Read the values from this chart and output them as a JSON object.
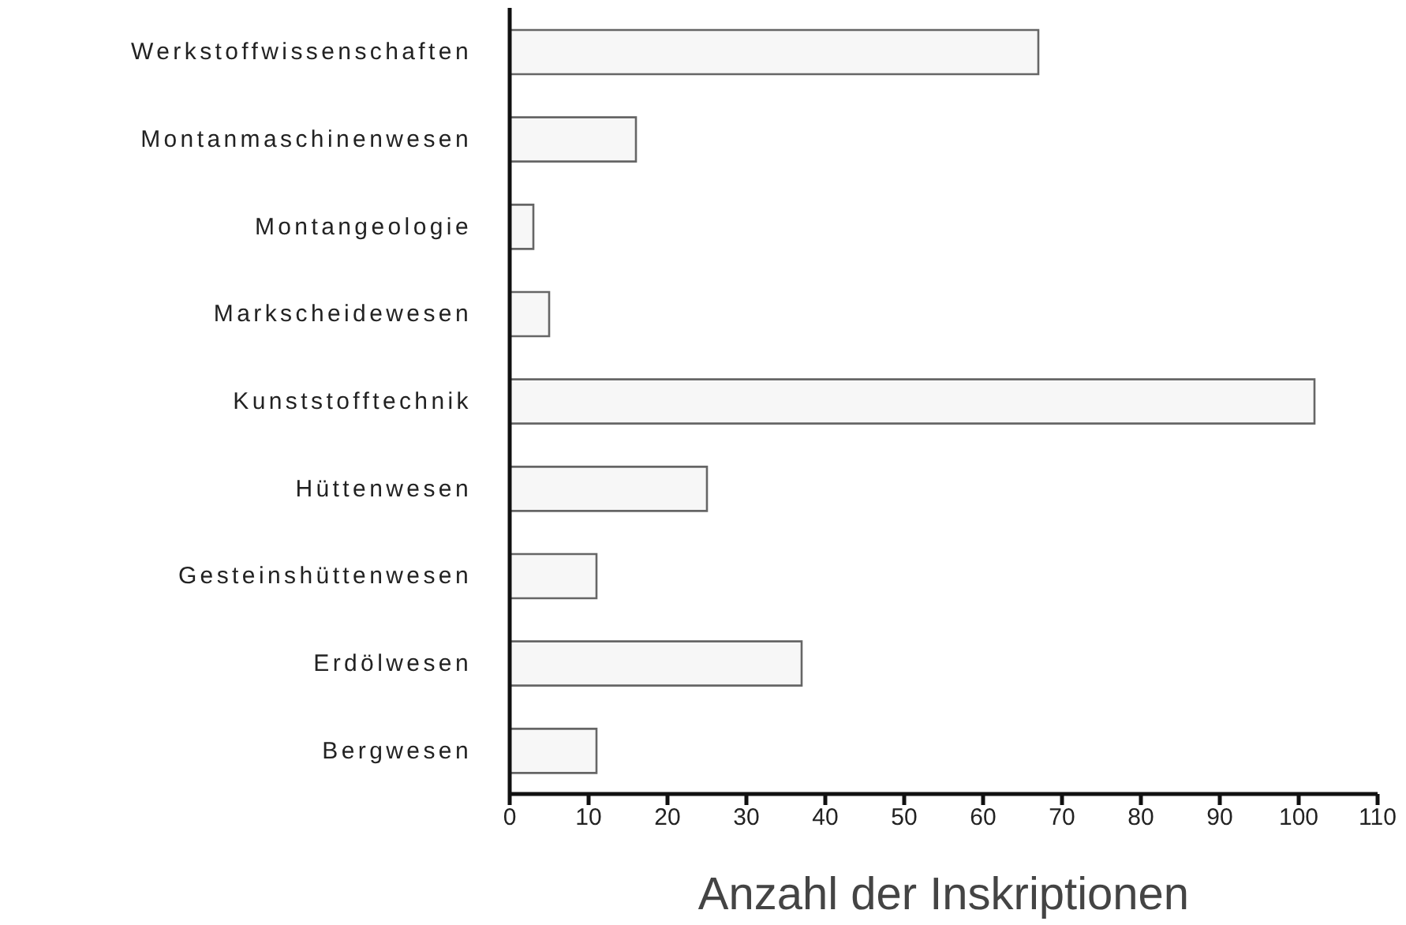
{
  "chart_data": {
    "type": "bar",
    "orientation": "horizontal",
    "xlabel": "Anzahl der Inskriptionen",
    "categories": [
      "Werkstoffwissenschaften",
      "Montanmaschinenwesen",
      "Montangeologie",
      "Markscheidewesen",
      "Kunststofftechnik",
      "Hüttenwesen",
      "Gesteinshüttenwesen",
      "Erdölwesen",
      "Bergwesen"
    ],
    "values": [
      67,
      16,
      3,
      5,
      102,
      25,
      11,
      37,
      11
    ],
    "color": "#f7f7f7",
    "xlim": [
      0,
      110
    ],
    "xticks": [
      0,
      10,
      20,
      30,
      40,
      50,
      60,
      70,
      80,
      90,
      100,
      110
    ],
    "grid": false,
    "legend": false
  }
}
